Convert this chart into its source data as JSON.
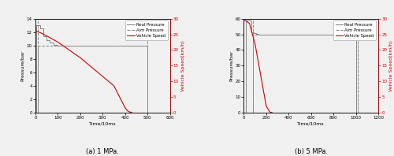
{
  "subplot_a": {
    "title": "(a) 1 MPa.",
    "xlabel": "Time/10ms",
    "ylabel_left": "Pressure/bar",
    "ylabel_right": "Vehicle Speed(km/h)",
    "xlim": [
      0,
      600
    ],
    "ylim_left": [
      0,
      14
    ],
    "ylim_right": [
      0,
      30
    ],
    "yticks_left": [
      0,
      2,
      4,
      6,
      8,
      10,
      12,
      14
    ],
    "yticks_right": [
      0,
      5,
      10,
      15,
      20,
      25,
      30
    ],
    "xticks": [
      0,
      100,
      200,
      300,
      400,
      500,
      600
    ],
    "aim_pressure_x": [
      0,
      10,
      10,
      500,
      500,
      600
    ],
    "aim_pressure_y": [
      0,
      0,
      10,
      10,
      0,
      0
    ],
    "real_pressure_x": [
      0,
      5,
      5,
      20,
      20,
      35,
      35,
      50,
      50,
      65,
      65,
      80,
      80,
      100,
      100,
      500,
      500,
      510
    ],
    "real_pressure_y": [
      0,
      0,
      13.0,
      13.0,
      12.6,
      12.6,
      11.4,
      11.4,
      10.8,
      10.8,
      10.4,
      10.4,
      10.1,
      10.1,
      10.0,
      10.0,
      0.0,
      0.0
    ],
    "speed_t": [
      0,
      20,
      50,
      100,
      150,
      200,
      250,
      300,
      350,
      400,
      410,
      420,
      430
    ],
    "speed_v": [
      26.0,
      25.6,
      24.5,
      22.5,
      20.0,
      17.5,
      14.5,
      11.5,
      8.5,
      1.5,
      0.5,
      0.1,
      0.0
    ],
    "dashed_vline_x1": 10,
    "dashed_vline_x2": 500,
    "real_color": "#888888",
    "aim_color": "#888888",
    "speed_color": "#cc0000",
    "legend_labels": [
      "Real Pressure",
      "Aim Pressure",
      "Vehicle Speed"
    ]
  },
  "subplot_b": {
    "title": "(b) 5 MPa.",
    "xlabel": "Time/10ms",
    "ylabel_left": "Pressure/bar",
    "ylabel_right": "Vehicle Speed(km/h)",
    "xlim": [
      0,
      1200
    ],
    "ylim_left": [
      0,
      60
    ],
    "ylim_right": [
      0,
      30
    ],
    "yticks_left": [
      0,
      10,
      20,
      30,
      40,
      50,
      60
    ],
    "yticks_right": [
      0,
      5,
      10,
      15,
      20,
      25,
      30
    ],
    "xticks": [
      0,
      200,
      400,
      600,
      800,
      1000,
      1200
    ],
    "aim_pressure_x": [
      0,
      80,
      80,
      1020,
      1020,
      1200
    ],
    "aim_pressure_y": [
      0,
      0,
      50,
      50,
      0,
      0
    ],
    "real_pressure_x": [
      0,
      15,
      15,
      70,
      70,
      90,
      90,
      110,
      110,
      130,
      130,
      1000,
      1000,
      1010
    ],
    "real_pressure_y": [
      0,
      0,
      59.0,
      59.0,
      51.5,
      51.5,
      50.8,
      50.8,
      50.3,
      50.3,
      50.0,
      50.0,
      0.0,
      0.0
    ],
    "speed_t": [
      0,
      20,
      50,
      100,
      150,
      200,
      230,
      240,
      250
    ],
    "speed_v": [
      29.5,
      29.3,
      28.5,
      22.0,
      12.0,
      2.0,
      0.2,
      0.0,
      0.0
    ],
    "dashed_vline_x1": 80,
    "dashed_vline_x2": 1020,
    "real_color": "#888888",
    "aim_color": "#888888",
    "speed_color": "#cc0000",
    "legend_labels": [
      "Real Pressure",
      "Aim Pressure",
      "Vehicle Speed"
    ]
  },
  "figure_bgcolor": "#f0f0f0",
  "axes_bgcolor": "#f0f0f0"
}
